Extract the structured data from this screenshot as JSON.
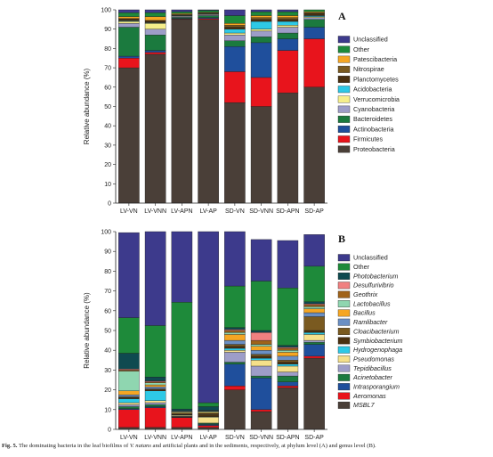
{
  "caption": {
    "fig_label": "Fig. 5.",
    "text_before_species": "The dominating bacteria in the leaf biofilms of",
    "species": "V. natans",
    "text_after_species": "and artificial plants and in the sediments, respectively, at phylum level (A) and genus level (B)."
  },
  "chart_data": [
    {
      "type": "bar",
      "stacked": true,
      "panel_label": "A",
      "ylabel": "Relative abundance (%)",
      "ylim": [
        0,
        100
      ],
      "yticks": [
        0,
        10,
        20,
        30,
        40,
        50,
        60,
        70,
        80,
        90,
        100
      ],
      "categories": [
        "LV-VN",
        "LV-VNN",
        "LV-APN",
        "LV-AP",
        "SD-VN",
        "SD-VNN",
        "SD-APN",
        "SD-AP"
      ],
      "legend_position": "right",
      "series": [
        {
          "name": "Proteobacteria",
          "color": "#4a3f38",
          "values": [
            70,
            77,
            95,
            95,
            52,
            50,
            57,
            60
          ]
        },
        {
          "name": "Firmicutes",
          "color": "#e8141c",
          "values": [
            5,
            1,
            0.3,
            0.5,
            16,
            15,
            22,
            25
          ]
        },
        {
          "name": "Actinobacteria",
          "color": "#1f4f9c",
          "values": [
            1,
            1,
            0.3,
            0.5,
            13,
            18,
            6,
            6
          ]
        },
        {
          "name": "Bacteroidetes",
          "color": "#1b7a3e",
          "values": [
            15,
            8,
            0.5,
            1,
            3,
            3,
            3,
            4
          ]
        },
        {
          "name": "Cyanobacteria",
          "color": "#9d9dc8",
          "values": [
            2,
            3,
            0.5,
            0.5,
            3,
            3,
            3,
            1
          ]
        },
        {
          "name": "Verrucomicrobia",
          "color": "#f5ee8a",
          "values": [
            1,
            3,
            0.3,
            0.3,
            1,
            1,
            1,
            0.5
          ]
        },
        {
          "name": "Acidobacteria",
          "color": "#2ec9e6",
          "values": [
            0.3,
            0.3,
            0.2,
            0.2,
            2,
            4,
            2,
            0.5
          ]
        },
        {
          "name": "Planctomycetes",
          "color": "#4a3010",
          "values": [
            1,
            1,
            0.3,
            0.3,
            1,
            1,
            1,
            1
          ]
        },
        {
          "name": "Nitrospirae",
          "color": "#7a5a20",
          "values": [
            0.2,
            0.2,
            0.1,
            0.1,
            1,
            1,
            1,
            0.5
          ]
        },
        {
          "name": "Patescibacteria",
          "color": "#f5a623",
          "values": [
            1,
            2,
            0.5,
            0.3,
            1,
            1,
            1,
            0.5
          ]
        },
        {
          "name": "Other",
          "color": "#1e8a3a",
          "values": [
            2,
            2,
            1,
            1,
            4,
            2,
            2,
            1
          ]
        },
        {
          "name": "Unclassified",
          "color": "#3d3a8c",
          "values": [
            1.5,
            1.5,
            1,
            1,
            3,
            1,
            1,
            0.5
          ]
        }
      ]
    },
    {
      "type": "bar",
      "stacked": true,
      "panel_label": "B",
      "ylabel": "Relative abundance (%)",
      "ylim": [
        0,
        100
      ],
      "yticks": [
        0,
        10,
        20,
        30,
        40,
        50,
        60,
        70,
        80,
        90,
        100
      ],
      "categories": [
        "LV-VN",
        "LV-VNN",
        "LV-APN",
        "LV-AP",
        "SD-VN",
        "SD-VNN",
        "SD-APN",
        "SD-AP"
      ],
      "legend_position": "right",
      "series": [
        {
          "name": "MSBL7",
          "color": "#4a3f38",
          "values": [
            1,
            1,
            1,
            1,
            20,
            9,
            21,
            36
          ]
        },
        {
          "name": "Aeromonas",
          "color": "#e8141c",
          "values": [
            9,
            10,
            5,
            1,
            2,
            1,
            1,
            1
          ]
        },
        {
          "name": "Intrasporangium",
          "color": "#1f4f9c",
          "values": [
            0.5,
            0.5,
            0.2,
            0.5,
            11,
            16,
            2,
            6
          ]
        },
        {
          "name": "Acinetobacter",
          "color": "#1b7a3e",
          "values": [
            1,
            1,
            0.2,
            0.5,
            1,
            1,
            3,
            1
          ]
        },
        {
          "name": "Tepidibacillus",
          "color": "#9d9dc8",
          "values": [
            1,
            1,
            0.2,
            0.2,
            5,
            5,
            2,
            1
          ]
        },
        {
          "name": "Pseudomonas",
          "color": "#f5e08a",
          "values": [
            1,
            1,
            0.5,
            3,
            1,
            3,
            3,
            3
          ]
        },
        {
          "name": "Hydrogenophaga",
          "color": "#2ec9e6",
          "values": [
            2,
            5,
            0.2,
            0.2,
            1,
            1,
            1,
            1
          ]
        },
        {
          "name": "Symbiobacterium",
          "color": "#4a3010",
          "values": [
            0.5,
            0.5,
            0.2,
            1,
            1,
            1,
            1,
            1
          ]
        },
        {
          "name": "Cloacibacterium",
          "color": "#7a5a20",
          "values": [
            0.5,
            0.5,
            0.2,
            0.5,
            1,
            1,
            1,
            7
          ]
        },
        {
          "name": "Ramlibacter",
          "color": "#6a8fc4",
          "values": [
            1,
            1,
            0.2,
            0.2,
            2,
            2,
            2,
            2
          ]
        },
        {
          "name": "Bacillus",
          "color": "#f5a623",
          "values": [
            2,
            1,
            0.5,
            0.5,
            3,
            2,
            2,
            2
          ]
        },
        {
          "name": "Lactobacillus",
          "color": "#8fd6b0",
          "values": [
            10,
            1,
            0.5,
            0.5,
            1,
            1,
            1,
            1
          ]
        },
        {
          "name": "Geothrix",
          "color": "#a0631a",
          "values": [
            0.5,
            0.5,
            0.2,
            0.2,
            1,
            2,
            1,
            1
          ]
        },
        {
          "name": "Desulfurivibrio",
          "color": "#f08080",
          "values": [
            0.5,
            0.5,
            0.2,
            0.2,
            0.5,
            4,
            0.5,
            0.5
          ]
        },
        {
          "name": "Photobacterium",
          "color": "#0f4a50",
          "values": [
            8,
            2,
            1,
            2,
            1,
            1,
            1,
            1
          ]
        },
        {
          "name": "Other",
          "color": "#1e8a3a",
          "values": [
            18,
            26,
            54,
            2,
            21,
            25,
            29,
            18
          ]
        },
        {
          "name": "Unclassified",
          "color": "#3d3a8c",
          "values": [
            43,
            49,
            36,
            88,
            28,
            21,
            24,
            16
          ]
        }
      ]
    }
  ]
}
